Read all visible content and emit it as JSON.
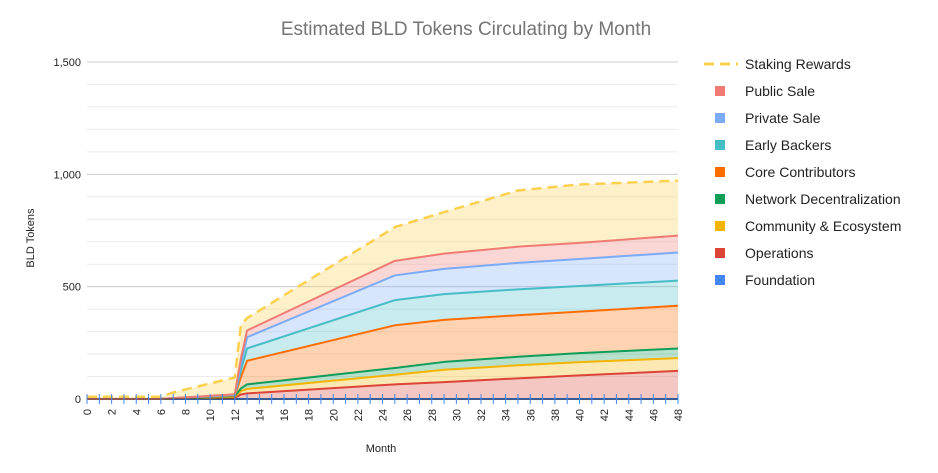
{
  "chart_data": {
    "type": "area",
    "stacked": true,
    "title": "Estimated BLD Tokens Circulating by Month",
    "xlabel": "Month",
    "ylabel": "BLD Tokens",
    "xlim": [
      0,
      48
    ],
    "ylim": [
      0,
      1500
    ],
    "x_ticks": [
      0,
      2,
      4,
      6,
      8,
      10,
      12,
      14,
      16,
      18,
      20,
      22,
      24,
      26,
      28,
      30,
      32,
      34,
      36,
      38,
      40,
      42,
      44,
      46,
      48
    ],
    "y_ticks": [
      0,
      500,
      1000,
      1500
    ],
    "y_tick_labels": [
      "0",
      "500",
      "1,000",
      "1,500"
    ],
    "grid": true,
    "legend_position": "right",
    "x": [
      0,
      6,
      7,
      12,
      12.5,
      13,
      25,
      29,
      35,
      40,
      48
    ],
    "series": [
      {
        "name": "Foundation",
        "color": "#4285f4",
        "values": [
          0,
          0,
          0,
          0,
          0,
          0,
          0,
          0,
          0,
          0,
          0
        ]
      },
      {
        "name": "Operations",
        "color": "#db4437",
        "values": [
          0,
          0,
          2,
          5,
          20,
          25,
          65,
          75,
          92,
          105,
          125
        ]
      },
      {
        "name": "Community & Ecosystem",
        "color": "#f4b400",
        "values": [
          0,
          0,
          1,
          5,
          15,
          20,
          43,
          55,
          58,
          59,
          57
        ]
      },
      {
        "name": "Network Decentralization",
        "color": "#0f9d58",
        "values": [
          0,
          0,
          1,
          3,
          12,
          20,
          30,
          35,
          38,
          40,
          43
        ]
      },
      {
        "name": "Core Contributors",
        "color": "#ff6d01",
        "values": [
          0,
          0,
          0,
          2,
          50,
          105,
          190,
          187,
          185,
          185,
          190
        ]
      },
      {
        "name": "Early Backers",
        "color": "#46bdc6",
        "values": [
          0,
          0,
          0,
          2,
          30,
          55,
          112,
          115,
          115,
          114,
          112
        ]
      },
      {
        "name": "Private Sale",
        "color": "#7baaf7",
        "values": [
          0,
          0,
          0,
          2,
          28,
          50,
          110,
          112,
          118,
          120,
          125
        ]
      },
      {
        "name": "Public Sale",
        "color": "#f07b72",
        "values": [
          0,
          0,
          0,
          2,
          25,
          30,
          65,
          68,
          72,
          72,
          75
        ]
      },
      {
        "name": "Staking Rewards",
        "color": "#fcd04f",
        "line_style": "dashed",
        "values": [
          10,
          10,
          25,
          75,
          150,
          55,
          150,
          185,
          250,
          260,
          245
        ]
      }
    ],
    "legend_order": [
      "Staking Rewards",
      "Public Sale",
      "Private Sale",
      "Early Backers",
      "Core Contributors",
      "Network Decentralization",
      "Community & Ecosystem",
      "Operations",
      "Foundation"
    ]
  }
}
